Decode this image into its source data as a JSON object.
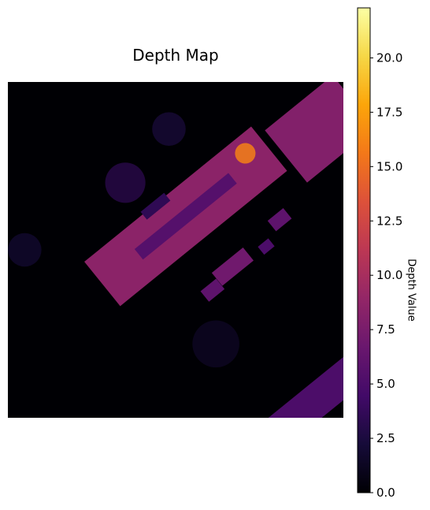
{
  "chart_data": {
    "type": "heatmap",
    "title": "Depth Map",
    "colormap": "inferno",
    "colorbar": {
      "label": "Depth Value",
      "range": [
        0,
        22.3
      ],
      "ticks": [
        0.0,
        2.5,
        5.0,
        7.5,
        10.0,
        12.5,
        15.0,
        17.5,
        20.0
      ],
      "tick_labels": [
        "0.0",
        "2.5",
        "5.0",
        "7.5",
        "10.0",
        "12.5",
        "15.0",
        "17.5",
        "20.0"
      ]
    },
    "axes_visible": false,
    "features": [
      {
        "name": "main-building",
        "kind": "rotated-rect",
        "center": [
          0.53,
          0.4
        ],
        "length": 0.64,
        "width": 0.17,
        "angle_deg": -39,
        "depth": 8.5,
        "peak_depth": 16
      },
      {
        "name": "roof-ridge",
        "kind": "rotated-rect",
        "center": [
          0.53,
          0.4
        ],
        "length": 0.36,
        "width": 0.04,
        "angle_deg": -39,
        "depth": 5.5
      },
      {
        "name": "top-right-building",
        "kind": "rotated-rect",
        "center": [
          0.93,
          0.14
        ],
        "length": 0.26,
        "width": 0.2,
        "angle_deg": -39,
        "depth": 8.0
      },
      {
        "name": "bottom-right-building",
        "kind": "rotated-rect",
        "center": [
          0.93,
          0.94
        ],
        "length": 0.55,
        "width": 0.1,
        "angle_deg": -39,
        "depth": 5.0
      },
      {
        "name": "annex-1",
        "kind": "rotated-rect",
        "center": [
          0.67,
          0.55
        ],
        "length": 0.12,
        "width": 0.05,
        "angle_deg": -39,
        "depth": 7.0
      },
      {
        "name": "annex-2",
        "kind": "rotated-rect",
        "center": [
          0.61,
          0.62
        ],
        "length": 0.06,
        "width": 0.04,
        "angle_deg": -39,
        "depth": 6.0
      },
      {
        "name": "annex-3",
        "kind": "rotated-rect",
        "center": [
          0.81,
          0.41
        ],
        "length": 0.06,
        "width": 0.04,
        "angle_deg": -39,
        "depth": 6.0
      },
      {
        "name": "annex-4",
        "kind": "rotated-rect",
        "center": [
          0.77,
          0.49
        ],
        "length": 0.04,
        "width": 0.03,
        "angle_deg": -39,
        "depth": 5.0
      },
      {
        "name": "annex-5",
        "kind": "rotated-rect",
        "center": [
          0.44,
          0.37
        ],
        "length": 0.09,
        "width": 0.03,
        "angle_deg": -39,
        "depth": 3.5
      },
      {
        "name": "vegetation-1",
        "kind": "blob",
        "center": [
          0.35,
          0.3
        ],
        "radius": 0.06,
        "depth": 3.5
      },
      {
        "name": "vegetation-2",
        "kind": "blob",
        "center": [
          0.48,
          0.14
        ],
        "radius": 0.05,
        "depth": 2.5
      },
      {
        "name": "vegetation-3",
        "kind": "blob",
        "center": [
          0.05,
          0.5
        ],
        "radius": 0.05,
        "depth": 2.0
      },
      {
        "name": "vegetation-4",
        "kind": "blob",
        "center": [
          0.62,
          0.78
        ],
        "radius": 0.07,
        "depth": 1.5
      }
    ]
  }
}
